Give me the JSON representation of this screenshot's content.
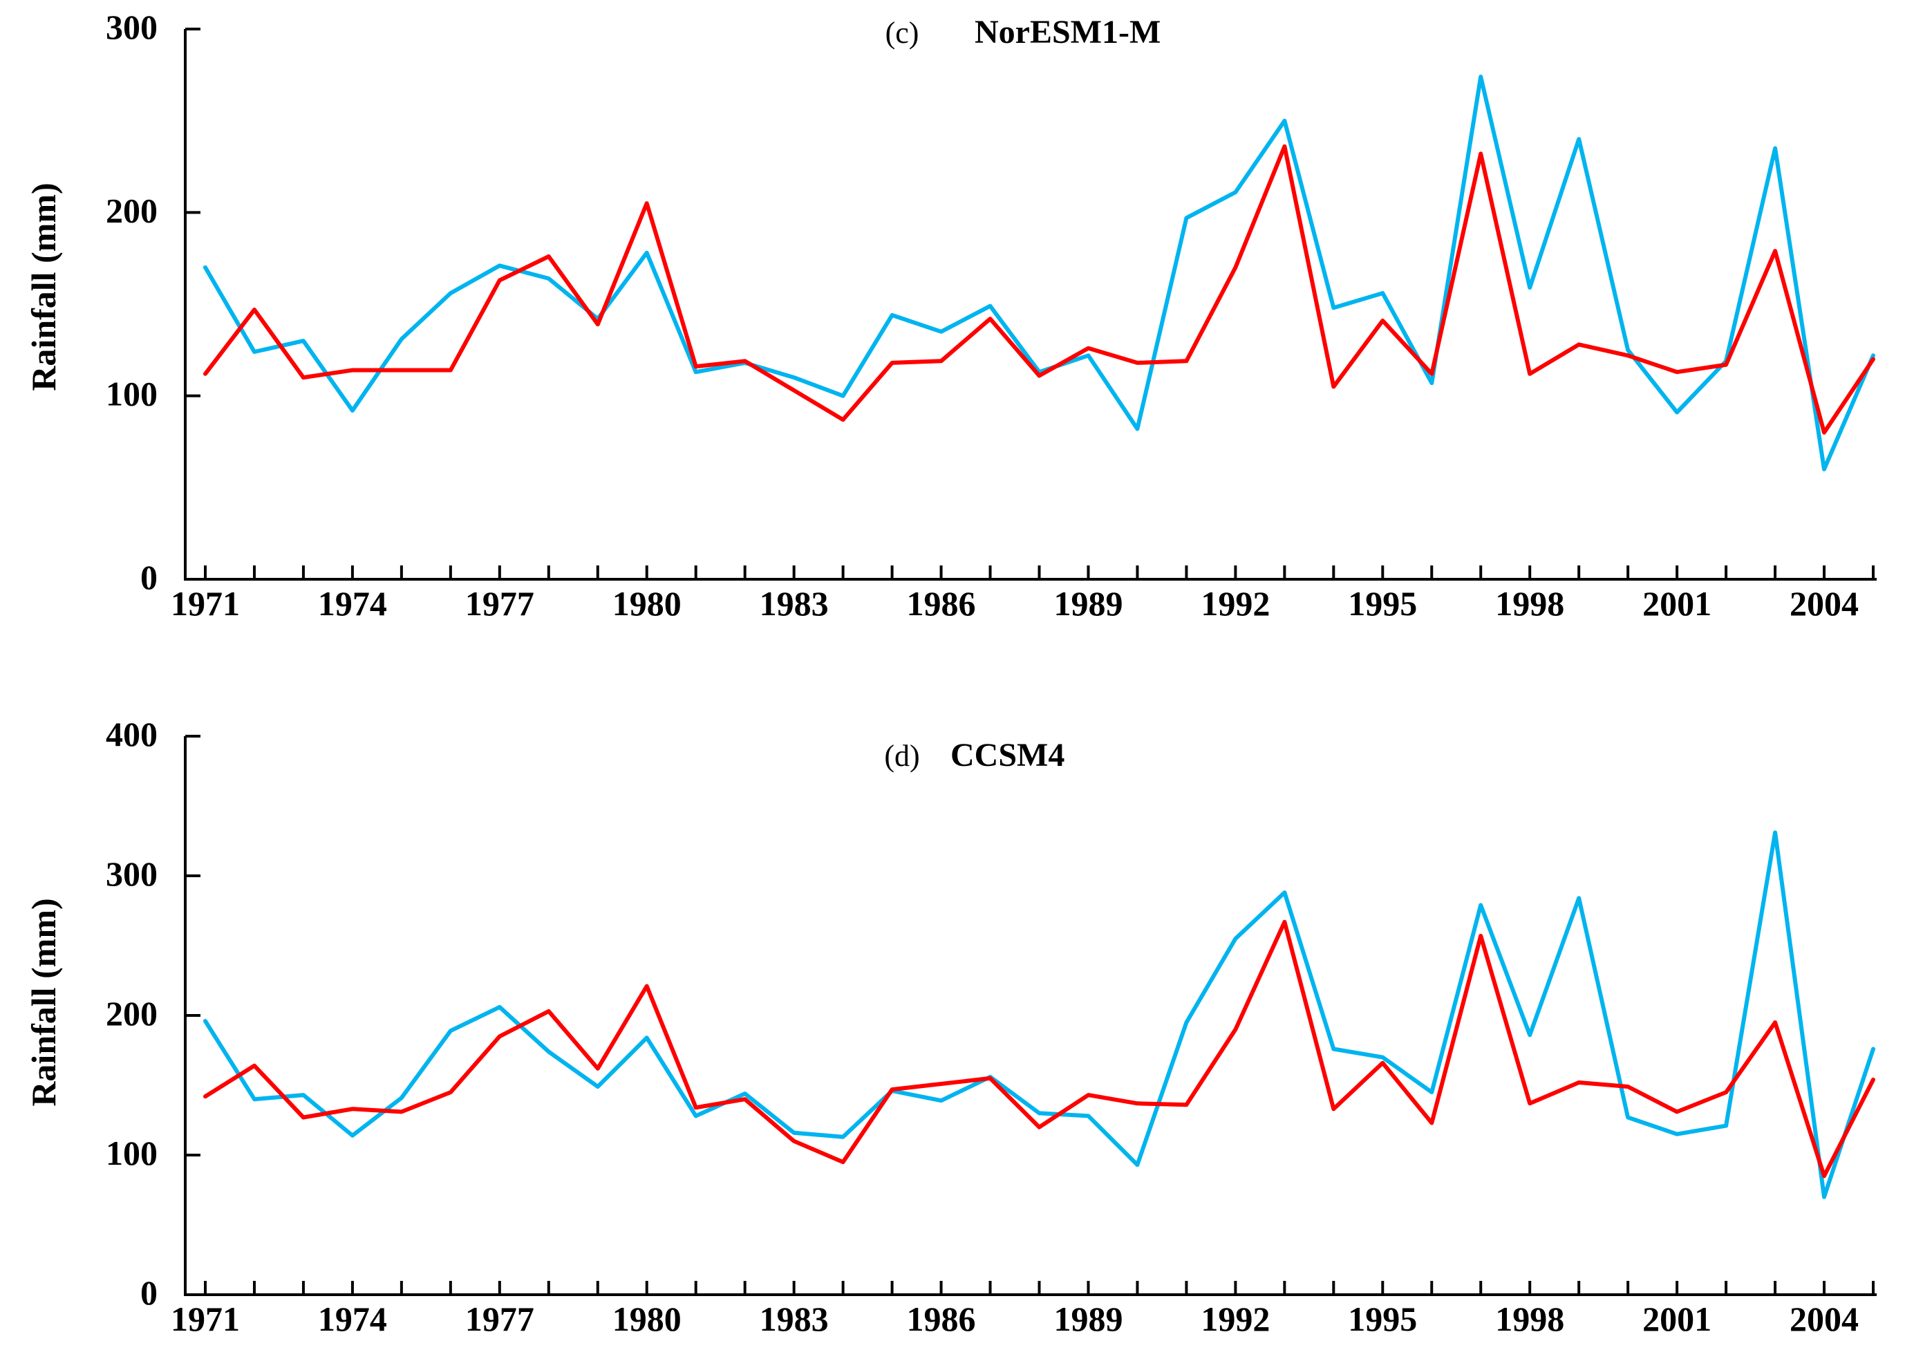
{
  "chart_data": [
    {
      "type": "line",
      "panel_label": "(c)",
      "title": "NorESM1-M",
      "xlabel": "",
      "ylabel": "Rainfall (mm)",
      "ylim": [
        0,
        300
      ],
      "yticks": [
        0,
        100,
        200,
        300
      ],
      "xticks": [
        1971,
        1974,
        1977,
        1980,
        1983,
        1986,
        1989,
        1992,
        1995,
        1998,
        2001,
        2004
      ],
      "grid": false,
      "x": [
        1971,
        1972,
        1973,
        1974,
        1975,
        1976,
        1977,
        1978,
        1979,
        1980,
        1981,
        1982,
        1983,
        1984,
        1985,
        1986,
        1987,
        1988,
        1989,
        1990,
        1991,
        1992,
        1993,
        1994,
        1995,
        1996,
        1997,
        1998,
        1999,
        2000,
        2001,
        2002,
        2003,
        2004,
        2005
      ],
      "series": [
        {
          "name": "cyan",
          "color": "#00b4ef",
          "values": [
            170,
            124,
            130,
            92,
            131,
            156,
            171,
            164,
            142,
            178,
            113,
            118,
            110,
            100,
            144,
            135,
            149,
            113,
            122,
            82,
            197,
            211,
            250,
            148,
            156,
            107,
            274,
            159,
            240,
            125,
            91,
            119,
            235,
            60,
            122
          ]
        },
        {
          "name": "red",
          "color": "#ff0000",
          "values": [
            112,
            147,
            110,
            114,
            114,
            114,
            163,
            176,
            139,
            205,
            116,
            119,
            103,
            87,
            118,
            119,
            142,
            111,
            126,
            118,
            119,
            170,
            236,
            105,
            141,
            112,
            232,
            112,
            128,
            122,
            113,
            117,
            179,
            80,
            120
          ]
        }
      ]
    },
    {
      "type": "line",
      "panel_label": "(d)",
      "title": "CCSM4",
      "xlabel": "",
      "ylabel": "Rainfall (mm)",
      "ylim": [
        0,
        400
      ],
      "yticks": [
        0,
        100,
        200,
        300,
        400
      ],
      "xticks": [
        1971,
        1974,
        1977,
        1980,
        1983,
        1986,
        1989,
        1992,
        1995,
        1998,
        2001,
        2004
      ],
      "grid": false,
      "x": [
        1971,
        1972,
        1973,
        1974,
        1975,
        1976,
        1977,
        1978,
        1979,
        1980,
        1981,
        1982,
        1983,
        1984,
        1985,
        1986,
        1987,
        1988,
        1989,
        1990,
        1991,
        1992,
        1993,
        1994,
        1995,
        1996,
        1997,
        1998,
        1999,
        2000,
        2001,
        2002,
        2003,
        2004,
        2005
      ],
      "series": [
        {
          "name": "cyan",
          "color": "#00b4ef",
          "values": [
            196,
            140,
            143,
            114,
            141,
            189,
            206,
            174,
            149,
            184,
            128,
            144,
            116,
            113,
            146,
            139,
            156,
            130,
            128,
            93,
            195,
            255,
            288,
            176,
            170,
            145,
            279,
            186,
            284,
            127,
            115,
            121,
            331,
            70,
            176
          ]
        },
        {
          "name": "red",
          "color": "#ff0000",
          "values": [
            142,
            164,
            127,
            133,
            131,
            145,
            185,
            203,
            162,
            221,
            134,
            140,
            110,
            95,
            147,
            151,
            155,
            120,
            143,
            137,
            136,
            190,
            267,
            133,
            166,
            123,
            257,
            137,
            152,
            149,
            131,
            145,
            195,
            85,
            154
          ]
        }
      ]
    }
  ]
}
